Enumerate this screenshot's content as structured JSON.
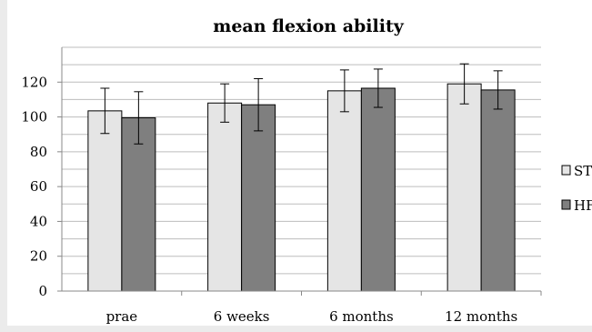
{
  "chart_data": {
    "type": "bar",
    "title": "mean flexion ability",
    "xlabel": "",
    "ylabel": "",
    "categories": [
      "prae",
      "6 weeks",
      "6 months",
      "12 months"
    ],
    "series": [
      {
        "name": "ST",
        "color": "#e5e5e5",
        "values": [
          103.5,
          108,
          115,
          119
        ],
        "error": [
          13,
          11,
          12,
          11.5
        ]
      },
      {
        "name": "HF",
        "color": "#7f7f7f",
        "values": [
          99.5,
          107,
          116.5,
          115.5
        ],
        "error": [
          15,
          15,
          11,
          11
        ]
      }
    ],
    "ylim": [
      0,
      140
    ],
    "yticks": [
      0,
      20,
      40,
      60,
      80,
      100,
      120
    ],
    "grid": true,
    "legend_position": "right"
  }
}
